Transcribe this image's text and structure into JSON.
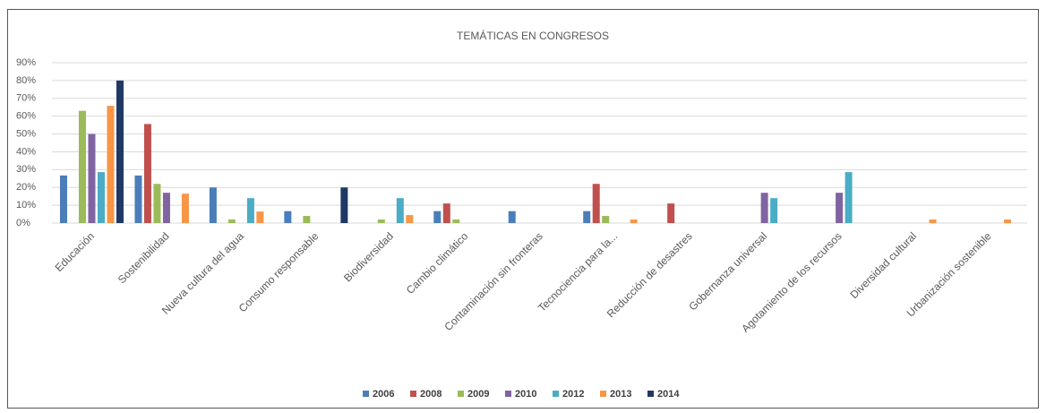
{
  "chart_data": {
    "type": "bar",
    "title": "TEMÁTICAS  EN CONGRESOS",
    "categories": [
      "Educación",
      "Sostenibilidad",
      "Nueva cultura del agua",
      "Consumo responsable",
      "Biodiversidad",
      "Cambio climático",
      "Contaminación sin fronteras",
      "Tecnociencia para la...",
      "Reducción de desastres",
      "Gobernanza universal",
      "Agotamiento de los recursos",
      "Diversidad cultural",
      "Urbanización sostenible"
    ],
    "series": [
      {
        "name": "2006",
        "color": "#4a7ebb",
        "values": [
          26.7,
          26.7,
          20,
          6.7,
          0,
          6.7,
          6.7,
          6.7,
          0,
          0,
          0,
          0,
          0
        ]
      },
      {
        "name": "2008",
        "color": "#c0504d",
        "values": [
          0,
          55.6,
          0,
          0,
          0,
          11,
          0,
          22,
          11,
          0,
          0,
          0,
          0
        ]
      },
      {
        "name": "2009",
        "color": "#9bbb59",
        "values": [
          63,
          22,
          2,
          4,
          2,
          2,
          0,
          4,
          0,
          0,
          0,
          0,
          0
        ]
      },
      {
        "name": "2010",
        "color": "#8064a2",
        "values": [
          50,
          17,
          0,
          0,
          0,
          0,
          0,
          0,
          0,
          17,
          17,
          0,
          0
        ]
      },
      {
        "name": "2012",
        "color": "#4bacc6",
        "values": [
          28.6,
          0,
          14,
          0,
          14,
          0,
          0,
          0,
          0,
          14,
          28.6,
          0,
          0
        ]
      },
      {
        "name": "2013",
        "color": "#f79646",
        "values": [
          65.8,
          16.5,
          6.5,
          0,
          4.5,
          0,
          0,
          2,
          0,
          0,
          0,
          2,
          2
        ]
      },
      {
        "name": "2014",
        "color": "#1f3864",
        "values": [
          80,
          0,
          0,
          20,
          0,
          0,
          0,
          0,
          0,
          0,
          0,
          0,
          0
        ]
      }
    ],
    "ylim": [
      0,
      90
    ],
    "yticks": [
      {
        "value": 0,
        "label": "0%"
      },
      {
        "value": 10,
        "label": "10%"
      },
      {
        "value": 20,
        "label": "20%"
      },
      {
        "value": 30,
        "label": "30%"
      },
      {
        "value": 40,
        "label": "40%"
      },
      {
        "value": 50,
        "label": "50%"
      },
      {
        "value": 60,
        "label": "60%"
      },
      {
        "value": 70,
        "label": "70%"
      },
      {
        "value": 80,
        "label": "80%"
      },
      {
        "value": 90,
        "label": "90%"
      }
    ],
    "grid": true
  }
}
